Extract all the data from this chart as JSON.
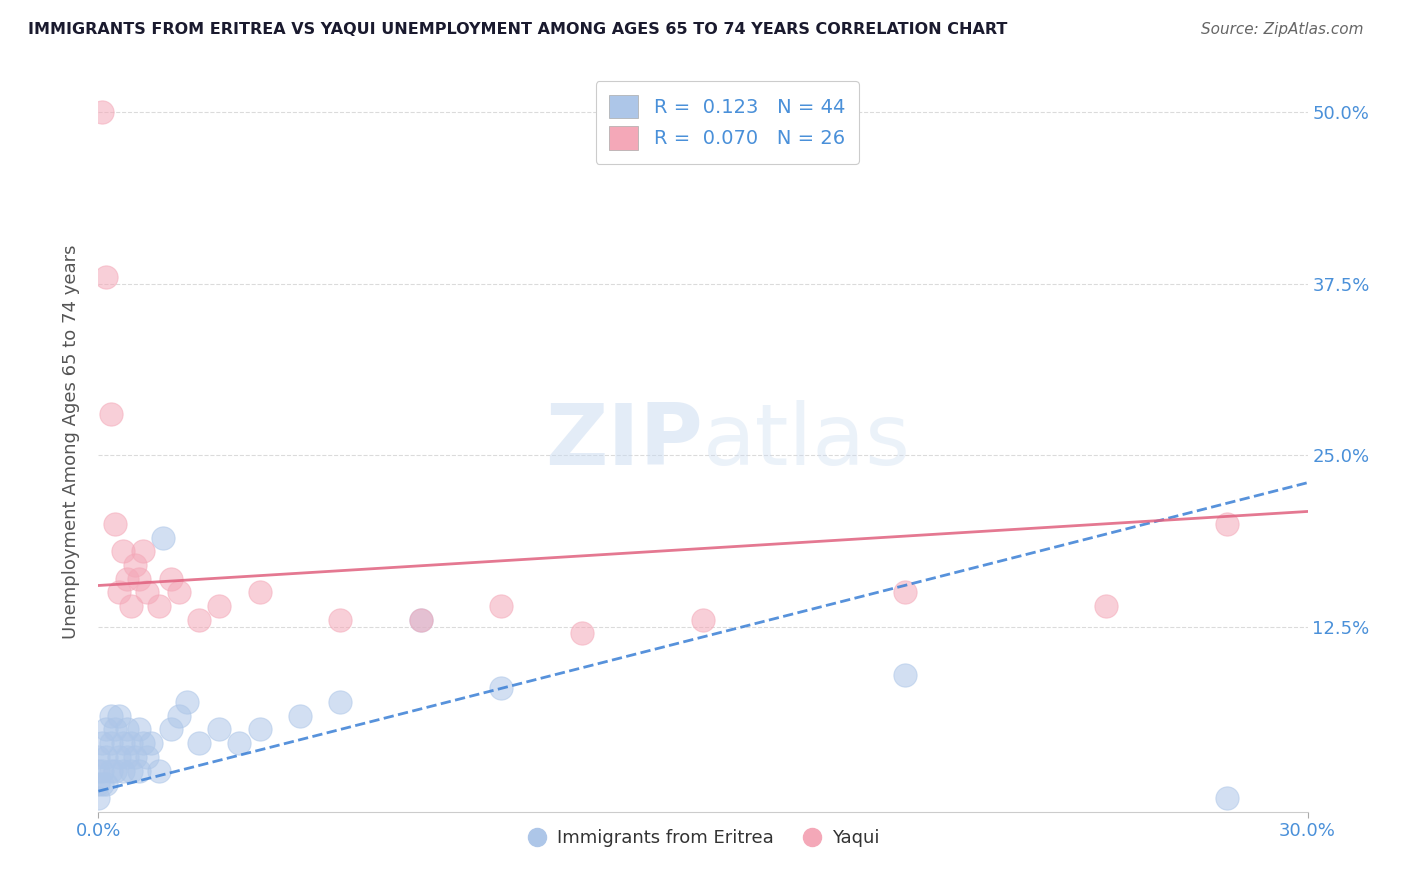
{
  "title": "IMMIGRANTS FROM ERITREA VS YAQUI UNEMPLOYMENT AMONG AGES 65 TO 74 YEARS CORRELATION CHART",
  "source": "Source: ZipAtlas.com",
  "ylabel": "Unemployment Among Ages 65 to 74 years",
  "xlim": [
    0.0,
    0.3
  ],
  "ylim": [
    -0.01,
    0.53
  ],
  "xticks": [
    0.0,
    0.3
  ],
  "xtick_labels": [
    "0.0%",
    "30.0%"
  ],
  "ytick_values": [
    0.125,
    0.25,
    0.375,
    0.5
  ],
  "ytick_labels": [
    "12.5%",
    "25.0%",
    "37.5%",
    "50.0%"
  ],
  "blue_R": "0.123",
  "blue_N": "44",
  "pink_R": "0.070",
  "pink_N": "26",
  "blue_color": "#adc6e8",
  "pink_color": "#f4a8b8",
  "blue_line_color": "#3a7fd5",
  "pink_line_color": "#e0607e",
  "blue_scatter_x": [
    0.0,
    0.0,
    0.0,
    0.0,
    0.001,
    0.001,
    0.001,
    0.002,
    0.002,
    0.002,
    0.003,
    0.003,
    0.003,
    0.004,
    0.004,
    0.005,
    0.005,
    0.006,
    0.006,
    0.007,
    0.007,
    0.008,
    0.008,
    0.009,
    0.01,
    0.01,
    0.011,
    0.012,
    0.013,
    0.015,
    0.016,
    0.018,
    0.02,
    0.022,
    0.025,
    0.03,
    0.035,
    0.04,
    0.05,
    0.06,
    0.08,
    0.1,
    0.2,
    0.28
  ],
  "blue_scatter_y": [
    0.0,
    0.01,
    0.02,
    0.03,
    0.01,
    0.02,
    0.04,
    0.01,
    0.03,
    0.05,
    0.02,
    0.04,
    0.06,
    0.02,
    0.05,
    0.03,
    0.06,
    0.02,
    0.04,
    0.03,
    0.05,
    0.02,
    0.04,
    0.03,
    0.02,
    0.05,
    0.04,
    0.03,
    0.04,
    0.02,
    0.19,
    0.05,
    0.06,
    0.07,
    0.04,
    0.05,
    0.04,
    0.05,
    0.06,
    0.07,
    0.13,
    0.08,
    0.09,
    0.0
  ],
  "pink_scatter_x": [
    0.001,
    0.002,
    0.003,
    0.004,
    0.005,
    0.006,
    0.007,
    0.008,
    0.009,
    0.01,
    0.011,
    0.012,
    0.015,
    0.018,
    0.02,
    0.025,
    0.03,
    0.04,
    0.06,
    0.08,
    0.1,
    0.12,
    0.15,
    0.2,
    0.25,
    0.28
  ],
  "pink_scatter_y": [
    0.5,
    0.38,
    0.28,
    0.2,
    0.15,
    0.18,
    0.16,
    0.14,
    0.17,
    0.16,
    0.18,
    0.15,
    0.14,
    0.16,
    0.15,
    0.13,
    0.14,
    0.15,
    0.13,
    0.13,
    0.14,
    0.12,
    0.13,
    0.15,
    0.14,
    0.2
  ],
  "background_color": "#ffffff",
  "grid_color": "#cccccc",
  "label_color": "#4a90d9",
  "title_color": "#1a1a2e",
  "source_color": "#666666"
}
